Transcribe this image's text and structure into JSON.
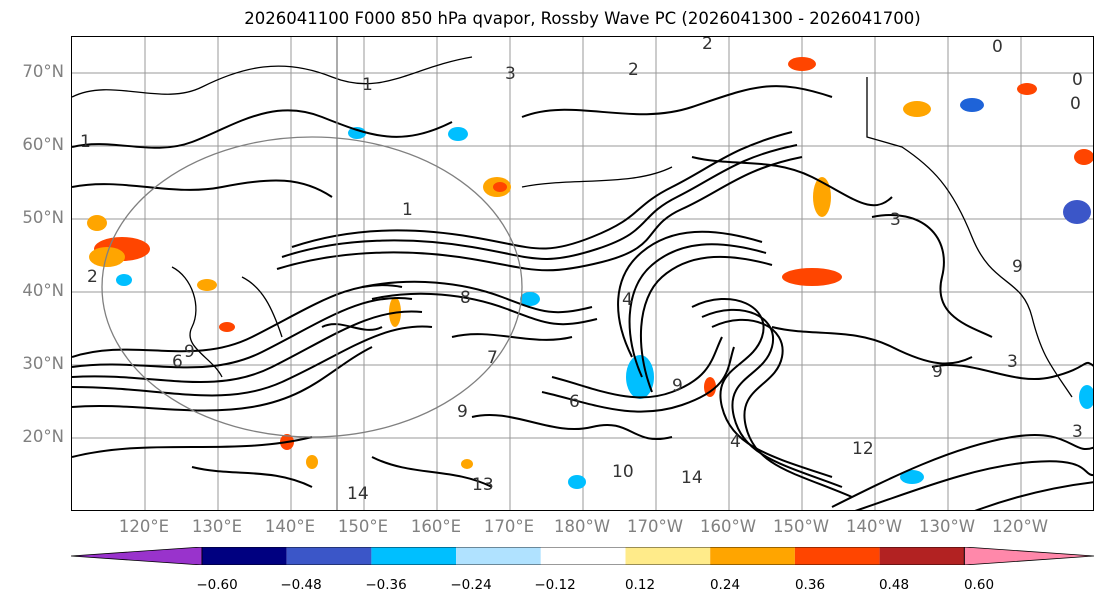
{
  "title": "2026041100 F000 850 hPa qvapor, Rossby Wave PC (2026041300 - 2026041700)",
  "map": {
    "projection": "plate-carree",
    "lat_range": [
      10,
      75
    ],
    "lon_range_east": [
      110,
      250
    ],
    "gridlines": true,
    "coastlines": true,
    "lat_labels": [
      "70°N",
      "60°N",
      "50°N",
      "40°N",
      "30°N",
      "20°N"
    ],
    "lon_labels": [
      "120°E",
      "130°E",
      "140°E",
      "150°E",
      "160°E",
      "170°E",
      "180°W",
      "170°W",
      "160°W",
      "150°W",
      "140°W",
      "130°W",
      "120°W"
    ],
    "contour_labels": [
      "2",
      "3",
      "1",
      "0",
      "2",
      "0",
      "1",
      "3",
      "0",
      "3",
      "1",
      "2",
      "8",
      "7",
      "6",
      "9",
      "4",
      "9",
      "10",
      "6",
      "9",
      "4",
      "14",
      "14",
      "12",
      "13",
      "9",
      "3",
      "9"
    ],
    "field": "850 hPa qvapor",
    "shading": "Rossby Wave PC"
  },
  "colorbar": {
    "extend": "both",
    "colors": [
      "#9933cc",
      "#000080",
      "#3b56c8",
      "#00bfff",
      "#b0e2ff",
      "#ffffff",
      "#ffeb8a",
      "#ffa500",
      "#ff4500",
      "#b22222",
      "#ff88aa"
    ],
    "tick_labels": [
      "−0.60",
      "−0.48",
      "−0.36",
      "−0.24",
      "−0.12",
      "0.12",
      "0.24",
      "0.36",
      "0.48",
      "0.60"
    ]
  }
}
